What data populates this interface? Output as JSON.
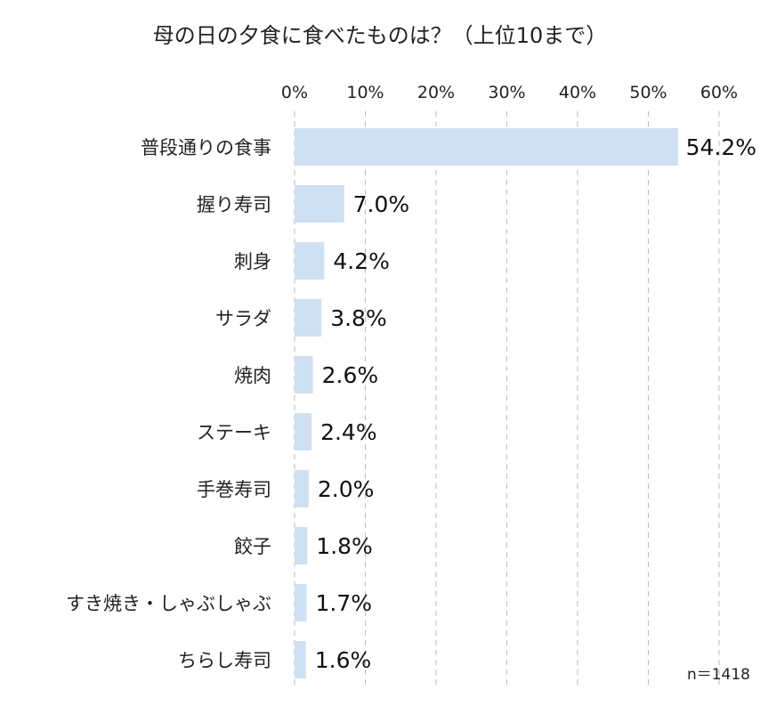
{
  "chart_data": {
    "type": "bar",
    "orientation": "horizontal",
    "title": "母の日の夕食に食べたものは？（上位10まで）",
    "categories": [
      "普段通りの食事",
      "握り寿司",
      "刺身",
      "サラダ",
      "焼肉",
      "ステーキ",
      "手巻寿司",
      "餃子",
      "すき焼き・しゃぶしゃぶ",
      "ちらし寿司"
    ],
    "values": [
      54.2,
      7.0,
      4.2,
      3.8,
      2.6,
      2.4,
      2.0,
      1.8,
      1.7,
      1.6
    ],
    "value_labels": [
      "54.2%",
      "7.0%",
      "4.2%",
      "3.8%",
      "2.6%",
      "2.4%",
      "2.0%",
      "1.8%",
      "1.7%",
      "1.6%"
    ],
    "x_ticks": [
      0,
      10,
      20,
      30,
      40,
      50,
      60
    ],
    "x_tick_labels": [
      "0%",
      "10%",
      "20%",
      "30%",
      "40%",
      "50%",
      "60%"
    ],
    "xlim": [
      0,
      60
    ],
    "xlabel": "",
    "ylabel": "",
    "grid": "vertical dashed",
    "axis_position": "top",
    "note": "n＝1418",
    "colors": {
      "bar": "#cfe0f2",
      "grid": "#bbbbbb",
      "text": "#222222"
    }
  }
}
